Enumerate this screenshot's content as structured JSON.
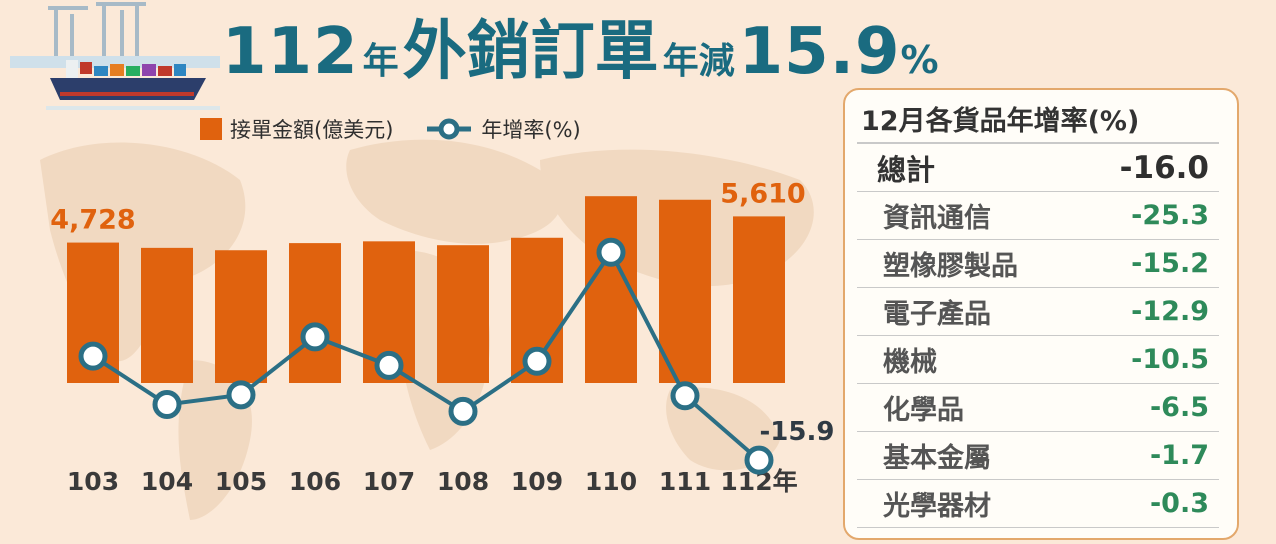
{
  "title": {
    "part1": "112",
    "part2": "年",
    "part3": "外銷訂單",
    "part4": "年減",
    "part5": "15.9",
    "part6": "%"
  },
  "legend": {
    "bar_label": "接單金額(億美元)",
    "line_label": "年增率(%)"
  },
  "colors": {
    "bar": "#e0620e",
    "line": "#2b6f85",
    "title": "#1a6b80",
    "positive_value": "#2e8a5a"
  },
  "chart_data": {
    "type": "bar",
    "categories": [
      "103",
      "104",
      "105",
      "106",
      "107",
      "108",
      "109",
      "110",
      "111",
      "112年"
    ],
    "series": [
      {
        "name": "接單金額(億美元)",
        "type": "bar",
        "values": [
          4728,
          4550,
          4470,
          4710,
          4770,
          4640,
          4890,
          6290,
          6170,
          5610
        ]
      },
      {
        "name": "年增率(%)",
        "type": "line",
        "values": [
          6.7,
          -3.8,
          -1.7,
          10.9,
          4.7,
          -5.3,
          5.6,
          29.3,
          -1.9,
          -15.9
        ]
      }
    ],
    "data_labels": {
      "first_bar": "4,728",
      "last_bar": "5,610",
      "last_rate": "-15.9"
    },
    "xlabel": "",
    "ylabel": ""
  },
  "panel": {
    "title": "12月各貨品年增率(%)",
    "rows": [
      {
        "label": "總計",
        "value": "-16.0"
      },
      {
        "label": "資訊通信",
        "value": "-25.3"
      },
      {
        "label": "塑橡膠製品",
        "value": "-15.2"
      },
      {
        "label": "電子產品",
        "value": "-12.9"
      },
      {
        "label": "機械",
        "value": "-10.5"
      },
      {
        "label": "化學品",
        "value": "-6.5"
      },
      {
        "label": "基本金屬",
        "value": "-1.7"
      },
      {
        "label": "光學器材",
        "value": "-0.3"
      }
    ]
  }
}
